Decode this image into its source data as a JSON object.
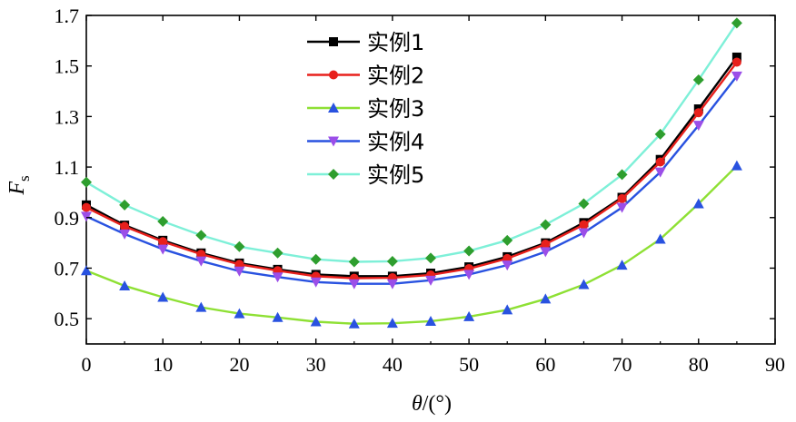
{
  "chart_data": {
    "type": "line",
    "xlabel_var": "θ",
    "xlabel_unit": "/(°)",
    "ylabel_main": "F",
    "ylabel_sub": "s",
    "xlim": [
      0,
      90
    ],
    "ylim": [
      0.4,
      1.7
    ],
    "xticks": [
      0,
      10,
      20,
      30,
      40,
      50,
      60,
      70,
      80,
      90
    ],
    "yticks": [
      0.5,
      0.7,
      0.9,
      1.1,
      1.3,
      1.5,
      1.7
    ],
    "ytick_labels": [
      "0.5",
      "0.7",
      "0.9",
      "1.1",
      "1.3",
      "1.5",
      "1.7"
    ],
    "legend_position": "top-center",
    "x": [
      0,
      5,
      10,
      15,
      20,
      25,
      30,
      35,
      40,
      45,
      50,
      55,
      60,
      65,
      70,
      75,
      80,
      85
    ],
    "series": [
      {
        "name": "实例1",
        "color": "#000000",
        "marker": "square",
        "values": [
          0.95,
          0.87,
          0.81,
          0.76,
          0.72,
          0.695,
          0.675,
          0.668,
          0.668,
          0.68,
          0.705,
          0.745,
          0.8,
          0.88,
          0.98,
          1.13,
          1.33,
          1.535
        ]
      },
      {
        "name": "实例2",
        "color": "#e8201c",
        "marker": "circle",
        "values": [
          0.94,
          0.865,
          0.805,
          0.755,
          0.715,
          0.69,
          0.668,
          0.66,
          0.662,
          0.673,
          0.698,
          0.738,
          0.795,
          0.872,
          0.975,
          1.12,
          1.315,
          1.515
        ]
      },
      {
        "name": "实例3",
        "color": "#8ee034",
        "marker_color": "#2952e0",
        "marker": "triangle-up",
        "values": [
          0.69,
          0.63,
          0.585,
          0.545,
          0.52,
          0.505,
          0.488,
          0.48,
          0.482,
          0.49,
          0.508,
          0.535,
          0.578,
          0.635,
          0.712,
          0.815,
          0.955,
          1.105
        ]
      },
      {
        "name": "实例4",
        "color": "#2952e0",
        "marker_color": "#9b4ee8",
        "marker": "triangle-down",
        "values": [
          0.905,
          0.835,
          0.775,
          0.728,
          0.688,
          0.665,
          0.645,
          0.638,
          0.638,
          0.652,
          0.675,
          0.712,
          0.765,
          0.84,
          0.94,
          1.08,
          1.265,
          1.46
        ]
      },
      {
        "name": "实例5",
        "color": "#7ef0d8",
        "marker_color": "#2e9e2e",
        "marker": "diamond",
        "values": [
          1.04,
          0.95,
          0.885,
          0.83,
          0.785,
          0.76,
          0.735,
          0.725,
          0.727,
          0.74,
          0.768,
          0.81,
          0.872,
          0.955,
          1.07,
          1.23,
          1.445,
          1.67
        ]
      }
    ]
  }
}
